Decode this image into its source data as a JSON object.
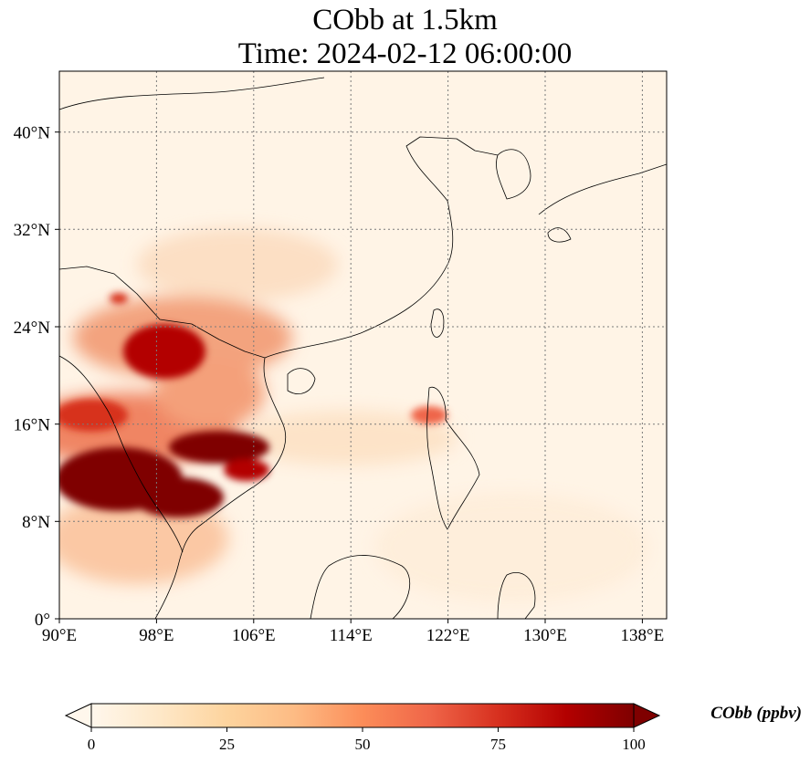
{
  "title": {
    "line1": "CObb at 1.5km",
    "line2": "Time: 2024-02-12 06:00:00"
  },
  "map": {
    "lon_range": [
      90,
      140
    ],
    "lat_range": [
      0,
      45
    ],
    "lon_ticks": [
      "90°E",
      "98°E",
      "106°E",
      "114°E",
      "122°E",
      "130°E",
      "138°E"
    ],
    "lat_ticks": [
      "0°",
      "8°N",
      "16°N",
      "24°N",
      "32°N",
      "40°N"
    ],
    "gridlines": true
  },
  "colorbar": {
    "label": "CObb (ppbv)",
    "ticks": [
      "0",
      "25",
      "50",
      "75",
      "100"
    ],
    "range": [
      0,
      100
    ],
    "colormap": "OrRd",
    "colors": [
      "#fff7ec",
      "#fee8c8",
      "#fdd49e",
      "#fdbb84",
      "#fc8d59",
      "#ef6548",
      "#d7301f",
      "#b30000",
      "#7f0000"
    ]
  }
}
